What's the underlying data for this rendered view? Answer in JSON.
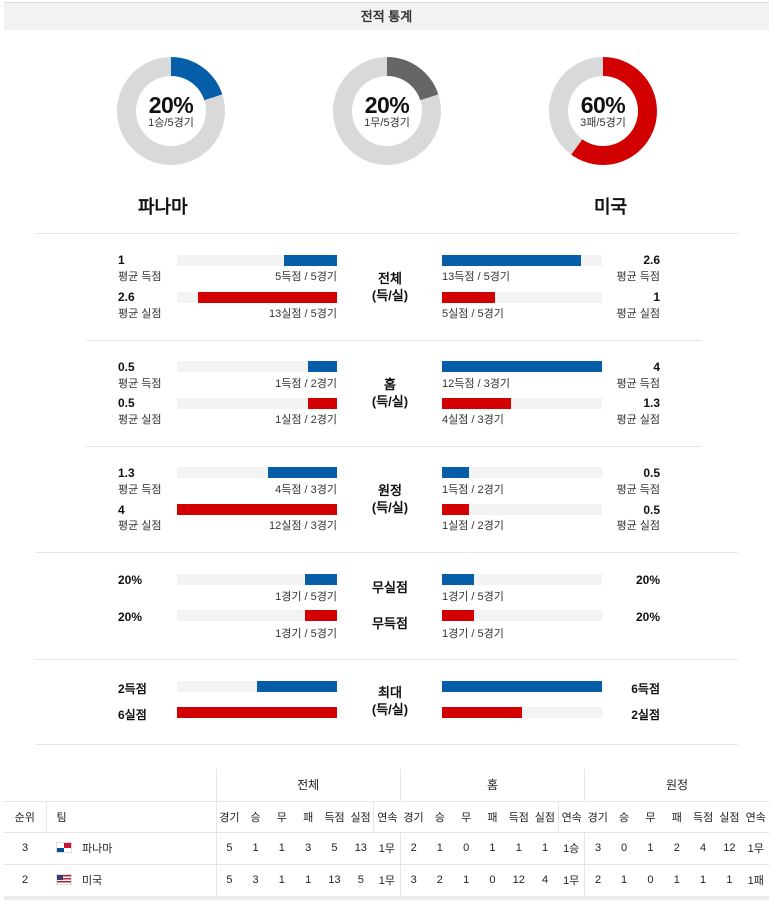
{
  "title": "전적 통계",
  "donuts": [
    {
      "pct": "20%",
      "sub": "1승/5경기",
      "value": 20,
      "color": "#075ea8"
    },
    {
      "pct": "20%",
      "sub": "1무/5경기",
      "value": 20,
      "color": "#666666"
    },
    {
      "pct": "60%",
      "sub": "3패/5경기",
      "value": 60,
      "color": "#d20000"
    }
  ],
  "teams": {
    "left": "파나마",
    "right": "미국"
  },
  "stats": {
    "total": {
      "center": [
        "전체",
        "(득/실)"
      ],
      "left": [
        {
          "val": "1",
          "lbl": "평균 득점",
          "bar_lbl": "5득점 / 5경기",
          "fill": 0.33
        },
        {
          "val": "2.6",
          "lbl": "평균 실점",
          "bar_lbl": "13실점 / 5경기",
          "fill": 0.87
        }
      ],
      "right": [
        {
          "val": "2.6",
          "lbl": "평균 득점",
          "bar_lbl": "13득점 / 5경기",
          "fill": 0.87
        },
        {
          "val": "1",
          "lbl": "평균 실점",
          "bar_lbl": "5실점 / 5경기",
          "fill": 0.33
        }
      ]
    },
    "home": {
      "center": [
        "홈",
        "(득/실)"
      ],
      "left": [
        {
          "val": "0.5",
          "lbl": "평균 득점",
          "bar_lbl": "1득점 / 2경기",
          "fill": 0.18
        },
        {
          "val": "0.5",
          "lbl": "평균 실점",
          "bar_lbl": "1실점 / 2경기",
          "fill": 0.18
        }
      ],
      "right": [
        {
          "val": "4",
          "lbl": "평균 득점",
          "bar_lbl": "12득점 / 3경기",
          "fill": 1.0
        },
        {
          "val": "1.3",
          "lbl": "평균 실점",
          "bar_lbl": "4실점 / 3경기",
          "fill": 0.43
        }
      ]
    },
    "away": {
      "center": [
        "원정",
        "(득/실)"
      ],
      "left": [
        {
          "val": "1.3",
          "lbl": "평균 득점",
          "bar_lbl": "4득점 / 3경기",
          "fill": 0.43
        },
        {
          "val": "4",
          "lbl": "평균 실점",
          "bar_lbl": "12실점 / 3경기",
          "fill": 1.0
        }
      ],
      "right": [
        {
          "val": "0.5",
          "lbl": "평균 득점",
          "bar_lbl": "1득점 / 2경기",
          "fill": 0.17
        },
        {
          "val": "0.5",
          "lbl": "평균 실점",
          "bar_lbl": "1실점 / 2경기",
          "fill": 0.17
        }
      ]
    },
    "clean": {
      "center_top": "무실점",
      "center_bottom": "무득점",
      "left": [
        {
          "val": "20%",
          "bar_lbl": "1경기 / 5경기",
          "fill": 0.2
        },
        {
          "val": "20%",
          "bar_lbl": "1경기 / 5경기",
          "fill": 0.2
        }
      ],
      "right": [
        {
          "val": "20%",
          "bar_lbl": "1경기 / 5경기",
          "fill": 0.2
        },
        {
          "val": "20%",
          "bar_lbl": "1경기 / 5경기",
          "fill": 0.2
        }
      ]
    },
    "max": {
      "center": [
        "최대",
        "(득/실)"
      ],
      "left": [
        {
          "val": "2득점",
          "fill": 0.5
        },
        {
          "val": "6실점",
          "fill": 1.0
        }
      ],
      "right": [
        {
          "val": "6득점",
          "fill": 1.0
        },
        {
          "val": "2실점",
          "fill": 0.5
        }
      ]
    }
  },
  "standings": {
    "groups": [
      "전체",
      "홈",
      "원정"
    ],
    "headers": [
      "순위",
      "팀",
      "경기",
      "승",
      "무",
      "패",
      "득점",
      "실점",
      "연속",
      "경기",
      "승",
      "무",
      "패",
      "득점",
      "실점",
      "연속",
      "경기",
      "승",
      "무",
      "패",
      "득점",
      "실점",
      "연속"
    ],
    "rows": [
      {
        "rank": "3",
        "team": "파나마",
        "cells": [
          "5",
          "1",
          "1",
          "3",
          "5",
          "13",
          "1무",
          "2",
          "1",
          "0",
          "1",
          "1",
          "1",
          "1승",
          "3",
          "0",
          "1",
          "2",
          "4",
          "12",
          "1무"
        ]
      },
      {
        "rank": "2",
        "team": "미국",
        "cells": [
          "5",
          "3",
          "1",
          "1",
          "13",
          "5",
          "1무",
          "3",
          "2",
          "1",
          "0",
          "12",
          "4",
          "1무",
          "2",
          "1",
          "0",
          "1",
          "1",
          "1",
          "1패"
        ]
      }
    ]
  }
}
